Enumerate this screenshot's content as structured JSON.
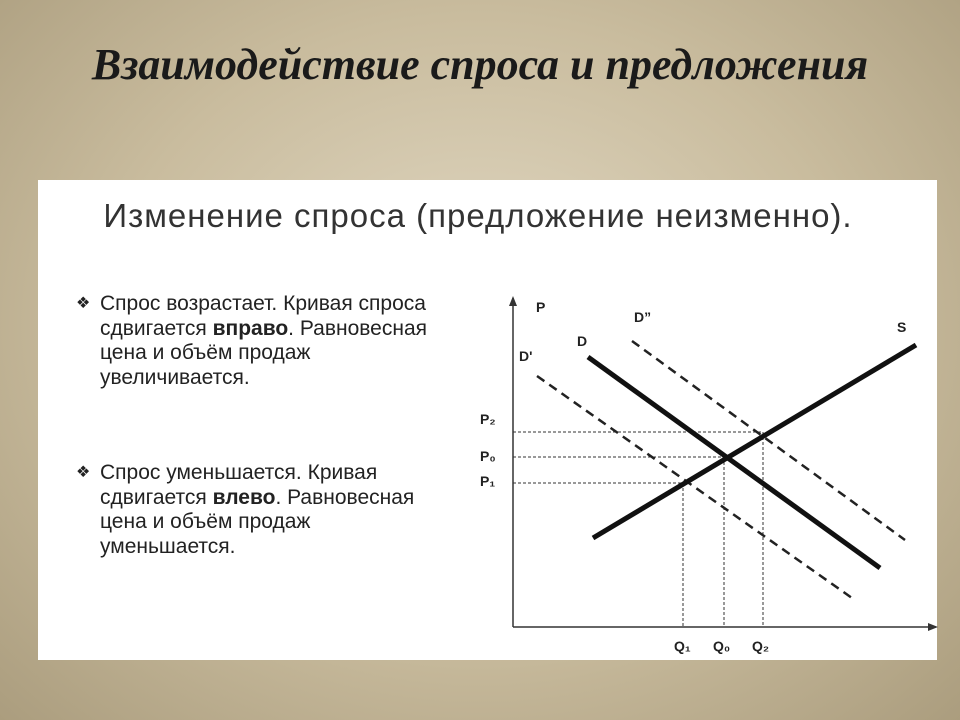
{
  "title": "Взаимодействие спроса и предложения",
  "panel": {
    "heading": "Изменение спроса (предложение неизменно).",
    "bullets": [
      {
        "before": "Спрос возрастает. Кривая спроса сдвигается ",
        "bold": "вправо",
        "after": ". Равновесная цена и объём продаж увеличивается."
      },
      {
        "before": "Спрос уменьшается. Кривая сдвигается ",
        "bold": "влево",
        "after": ". Равновесная цена и объём продаж уменьшается."
      }
    ]
  },
  "diagram": {
    "axis_label": "P",
    "curves": {
      "supply": "S",
      "demand": "D",
      "demand_left": "D'",
      "demand_right": "D”"
    },
    "prices": [
      "P₂",
      "P₀",
      "P₁"
    ],
    "quantities": [
      "Q₁",
      "Q₀",
      "Q₂"
    ]
  }
}
